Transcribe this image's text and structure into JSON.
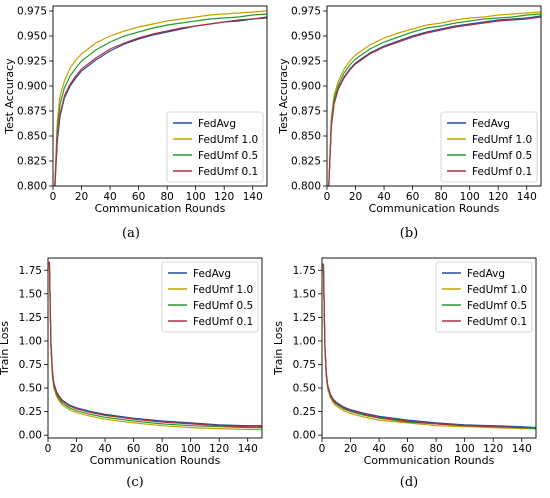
{
  "chart_data": [
    {
      "type": "line",
      "panel_label": "(a)",
      "xlabel": "Communication Rounds",
      "ylabel": "Test Accuracy",
      "xlim": [
        0,
        150
      ],
      "ylim": [
        0.8,
        0.98
      ],
      "xticks": [
        0,
        20,
        40,
        60,
        80,
        100,
        120,
        140
      ],
      "xtick_labels": [
        "0",
        "20",
        "40",
        "60",
        "80",
        "100",
        "120",
        "140"
      ],
      "yticks": [
        0.8,
        0.825,
        0.85,
        0.875,
        0.9,
        0.925,
        0.95,
        0.975
      ],
      "ytick_labels": [
        "0.800",
        "0.825",
        "0.850",
        "0.875",
        "0.900",
        "0.925",
        "0.950",
        "0.975"
      ],
      "legend_position": "lower-right",
      "x": [
        1,
        3,
        5,
        8,
        12,
        16,
        20,
        30,
        40,
        50,
        60,
        70,
        80,
        90,
        100,
        110,
        120,
        130,
        140,
        150
      ],
      "series": [
        {
          "name": "FedAvg",
          "color": "#1f4e9e",
          "values": [
            0.79,
            0.845,
            0.87,
            0.888,
            0.9,
            0.908,
            0.915,
            0.926,
            0.935,
            0.942,
            0.947,
            0.951,
            0.954,
            0.957,
            0.96,
            0.962,
            0.964,
            0.965,
            0.967,
            0.969
          ]
        },
        {
          "name": "FedUmf 1.0",
          "color": "#c8a000",
          "values": [
            0.79,
            0.865,
            0.89,
            0.905,
            0.918,
            0.926,
            0.932,
            0.943,
            0.95,
            0.955,
            0.959,
            0.962,
            0.965,
            0.967,
            0.969,
            0.971,
            0.972,
            0.973,
            0.974,
            0.975
          ]
        },
        {
          "name": "FedUmf 0.5",
          "color": "#2a9a2a",
          "values": [
            0.79,
            0.858,
            0.882,
            0.898,
            0.91,
            0.918,
            0.925,
            0.936,
            0.944,
            0.95,
            0.954,
            0.958,
            0.961,
            0.963,
            0.965,
            0.967,
            0.968,
            0.969,
            0.971,
            0.972
          ]
        },
        {
          "name": "FedUmf 0.1",
          "color": "#b03040",
          "values": [
            0.79,
            0.848,
            0.872,
            0.89,
            0.902,
            0.91,
            0.917,
            0.928,
            0.937,
            0.943,
            0.948,
            0.952,
            0.955,
            0.958,
            0.96,
            0.962,
            0.964,
            0.966,
            0.967,
            0.968
          ]
        }
      ]
    },
    {
      "type": "line",
      "panel_label": "(b)",
      "xlabel": "Communication Rounds",
      "ylabel": "Test Accuracy",
      "xlim": [
        0,
        150
      ],
      "ylim": [
        0.8,
        0.98
      ],
      "xticks": [
        0,
        20,
        40,
        60,
        80,
        100,
        120,
        140
      ],
      "xtick_labels": [
        "0",
        "20",
        "40",
        "60",
        "80",
        "100",
        "120",
        "140"
      ],
      "yticks": [
        0.8,
        0.825,
        0.85,
        0.875,
        0.9,
        0.925,
        0.95,
        0.975
      ],
      "ytick_labels": [
        "0.800",
        "0.825",
        "0.850",
        "0.875",
        "0.900",
        "0.925",
        "0.950",
        "0.975"
      ],
      "legend_position": "lower-right",
      "x": [
        1,
        3,
        5,
        8,
        12,
        16,
        20,
        30,
        40,
        50,
        60,
        70,
        80,
        90,
        100,
        110,
        120,
        130,
        140,
        150
      ],
      "series": [
        {
          "name": "FedAvg",
          "color": "#1f4e9e",
          "values": [
            0.79,
            0.86,
            0.883,
            0.898,
            0.909,
            0.917,
            0.923,
            0.933,
            0.94,
            0.945,
            0.95,
            0.954,
            0.957,
            0.96,
            0.962,
            0.964,
            0.966,
            0.967,
            0.968,
            0.97
          ]
        },
        {
          "name": "FedUmf 1.0",
          "color": "#c8a000",
          "values": [
            0.79,
            0.868,
            0.891,
            0.905,
            0.917,
            0.925,
            0.931,
            0.941,
            0.948,
            0.953,
            0.957,
            0.961,
            0.963,
            0.966,
            0.968,
            0.969,
            0.971,
            0.972,
            0.973,
            0.974
          ]
        },
        {
          "name": "FedUmf 0.5",
          "color": "#2a9a2a",
          "values": [
            0.79,
            0.864,
            0.887,
            0.901,
            0.913,
            0.921,
            0.927,
            0.937,
            0.944,
            0.949,
            0.954,
            0.958,
            0.96,
            0.963,
            0.965,
            0.967,
            0.968,
            0.969,
            0.971,
            0.972
          ]
        },
        {
          "name": "FedUmf 0.1",
          "color": "#b03040",
          "values": [
            0.79,
            0.859,
            0.882,
            0.897,
            0.908,
            0.916,
            0.922,
            0.932,
            0.939,
            0.944,
            0.949,
            0.953,
            0.956,
            0.959,
            0.961,
            0.963,
            0.965,
            0.966,
            0.967,
            0.969
          ]
        }
      ]
    },
    {
      "type": "line",
      "panel_label": "(c)",
      "xlabel": "Communication Rounds",
      "ylabel": "Train Loss",
      "xlim": [
        0,
        150
      ],
      "ylim": [
        -0.03,
        1.88
      ],
      "xticks": [
        0,
        20,
        40,
        60,
        80,
        100,
        120,
        140
      ],
      "xtick_labels": [
        "0",
        "20",
        "40",
        "60",
        "80",
        "100",
        "120",
        "140"
      ],
      "yticks": [
        0,
        0.25,
        0.5,
        0.75,
        1.0,
        1.25,
        1.5,
        1.75
      ],
      "ytick_labels": [
        "0.00",
        "0.25",
        "0.50",
        "0.75",
        "1.00",
        "1.25",
        "1.50",
        "1.75"
      ],
      "legend_position": "upper-right",
      "x": [
        1,
        2,
        3,
        4,
        6,
        8,
        10,
        15,
        20,
        30,
        40,
        60,
        80,
        100,
        120,
        140,
        150
      ],
      "series": [
        {
          "name": "FedAvg",
          "color": "#1f4e9e",
          "values": [
            1.84,
            1.0,
            0.7,
            0.56,
            0.46,
            0.41,
            0.37,
            0.32,
            0.29,
            0.25,
            0.22,
            0.18,
            0.15,
            0.13,
            0.11,
            0.1,
            0.1
          ]
        },
        {
          "name": "FedUmf 1.0",
          "color": "#c8a000",
          "values": [
            1.84,
            0.95,
            0.64,
            0.51,
            0.41,
            0.36,
            0.32,
            0.27,
            0.24,
            0.2,
            0.17,
            0.13,
            0.1,
            0.08,
            0.07,
            0.06,
            0.06
          ]
        },
        {
          "name": "FedUmf 0.5",
          "color": "#2a9a2a",
          "values": [
            1.84,
            0.97,
            0.67,
            0.53,
            0.43,
            0.38,
            0.34,
            0.29,
            0.26,
            0.22,
            0.19,
            0.15,
            0.12,
            0.1,
            0.09,
            0.08,
            0.08
          ]
        },
        {
          "name": "FedUmf 0.1",
          "color": "#b03040",
          "values": [
            1.84,
            0.99,
            0.69,
            0.55,
            0.45,
            0.4,
            0.36,
            0.31,
            0.28,
            0.24,
            0.21,
            0.17,
            0.14,
            0.12,
            0.1,
            0.09,
            0.09
          ]
        }
      ]
    },
    {
      "type": "line",
      "panel_label": "(d)",
      "xlabel": "Communication Rounds",
      "ylabel": "Train Loss",
      "xlim": [
        0,
        150
      ],
      "ylim": [
        -0.03,
        1.88
      ],
      "xticks": [
        0,
        20,
        40,
        60,
        80,
        100,
        120,
        140
      ],
      "xtick_labels": [
        "0",
        "20",
        "40",
        "60",
        "80",
        "100",
        "120",
        "140"
      ],
      "yticks": [
        0,
        0.25,
        0.5,
        0.75,
        1.0,
        1.25,
        1.5,
        1.75
      ],
      "ytick_labels": [
        "0.00",
        "0.25",
        "0.50",
        "0.75",
        "1.00",
        "1.25",
        "1.50",
        "1.75"
      ],
      "legend_position": "upper-right",
      "x": [
        1,
        2,
        3,
        4,
        6,
        8,
        10,
        15,
        20,
        30,
        40,
        60,
        80,
        100,
        120,
        140,
        150
      ],
      "series": [
        {
          "name": "FedAvg",
          "color": "#1f4e9e",
          "values": [
            1.82,
            0.95,
            0.66,
            0.53,
            0.43,
            0.38,
            0.35,
            0.3,
            0.27,
            0.23,
            0.2,
            0.16,
            0.13,
            0.11,
            0.1,
            0.09,
            0.08
          ]
        },
        {
          "name": "FedUmf 1.0",
          "color": "#c8a000",
          "values": [
            1.82,
            0.92,
            0.62,
            0.49,
            0.39,
            0.34,
            0.31,
            0.26,
            0.23,
            0.19,
            0.16,
            0.13,
            0.1,
            0.09,
            0.08,
            0.07,
            0.07
          ]
        },
        {
          "name": "FedUmf 0.5",
          "color": "#2a9a2a",
          "values": [
            1.82,
            0.93,
            0.64,
            0.51,
            0.41,
            0.36,
            0.33,
            0.28,
            0.25,
            0.21,
            0.18,
            0.14,
            0.12,
            0.1,
            0.09,
            0.08,
            0.07
          ]
        },
        {
          "name": "FedUmf 0.1",
          "color": "#b03040",
          "values": [
            1.82,
            0.95,
            0.65,
            0.52,
            0.42,
            0.37,
            0.34,
            0.29,
            0.26,
            0.22,
            0.19,
            0.15,
            0.12,
            0.1,
            0.09,
            0.08,
            0.08
          ]
        }
      ]
    }
  ]
}
